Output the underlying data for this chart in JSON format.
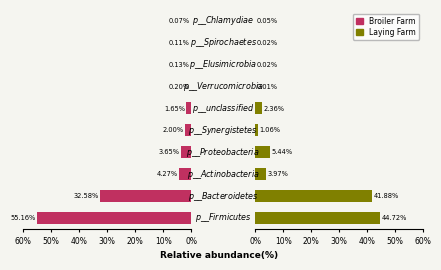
{
  "categories": [
    "p__Firmicutes",
    "p__Bacteroidetes",
    "p__Actinobacteria",
    "p__Proteobacteria",
    "p__Synergistetes",
    "p__unclassified",
    "p__Verrucomicrobia",
    "p__Elusimicrobia",
    "p__Spirochaetes",
    "p__Chlamydiae"
  ],
  "broiler_values": [
    55.16,
    32.58,
    4.27,
    3.65,
    2.0,
    1.65,
    0.2,
    0.13,
    0.11,
    0.07
  ],
  "laying_values": [
    44.72,
    41.88,
    3.97,
    5.44,
    1.06,
    2.36,
    0.01,
    0.02,
    0.02,
    0.05
  ],
  "broiler_color": "#C03060",
  "laying_color": "#808000",
  "broiler_label": "Broiler Farm",
  "laying_label": "Laying Farm",
  "xlabel": "Relative abundance(%)",
  "xlim": 60,
  "background_color": "#f5f5f0",
  "bar_height": 0.55,
  "annot_fontsize": 4.8,
  "label_fontsize": 5.8,
  "tick_fontsize": 5.5,
  "legend_fontsize": 5.5
}
